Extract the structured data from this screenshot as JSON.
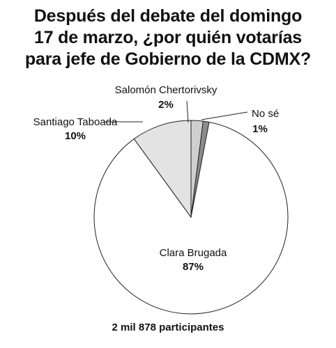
{
  "title_lines": [
    "Después del debate del domingo",
    "17 de marzo, ¿por quién votarías",
    "para jefe de Gobierno de la CDMX?"
  ],
  "footer": "2 mil 878 participantes",
  "chart_data": {
    "type": "pie",
    "title": "Después del debate del domingo 17 de marzo, ¿por quién votarías para jefe de Gobierno de la CDMX?",
    "unit": "%",
    "slices": [
      {
        "label": "Salomón Chertorivsky",
        "value": 2,
        "display": "2%",
        "color": "#cfcfcf"
      },
      {
        "label": "No sé",
        "value": 1,
        "display": "1%",
        "color": "#8c8c8c"
      },
      {
        "label": "Clara Brugada",
        "value": 87,
        "display": "87%",
        "color": "#ffffff"
      },
      {
        "label": "Santiago Taboada",
        "value": 10,
        "display": "10%",
        "color": "#e3e3e3"
      }
    ],
    "start_slice": "Salomón Chertorivsky",
    "direction": "clockwise",
    "legend": "none",
    "note": "2 mil 878 participantes"
  }
}
